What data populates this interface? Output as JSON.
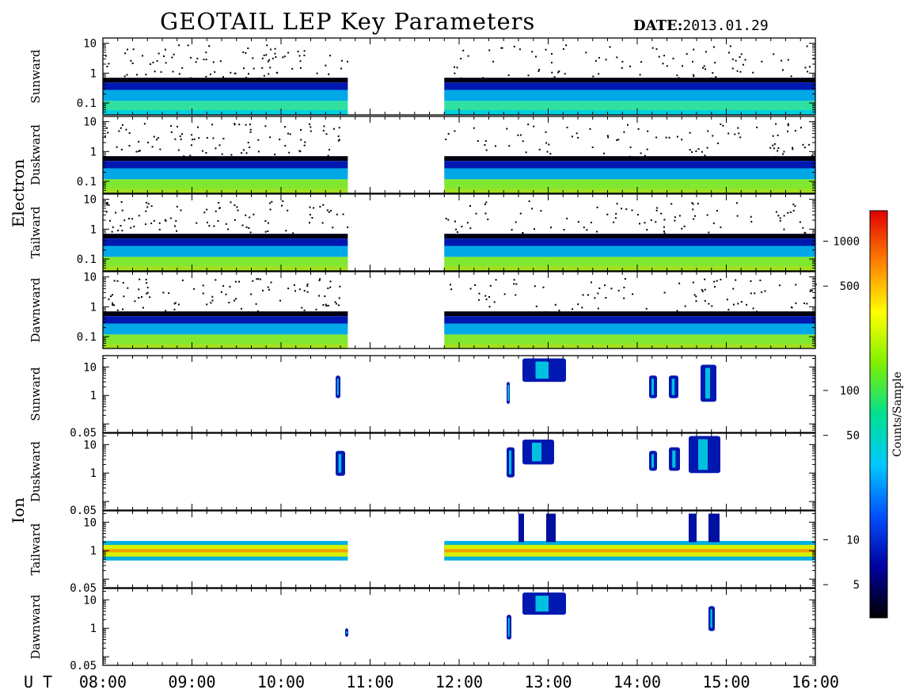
{
  "header": {
    "title": "GEOTAIL LEP Key Parameters",
    "date_label": "DATE:",
    "date_value": "2013.01.29"
  },
  "chart_data": {
    "type": "heatmap",
    "x_axis": {
      "label": "U T",
      "range": [
        "08:00",
        "16:00"
      ],
      "ticks": [
        "08:00",
        "09:00",
        "10:00",
        "11:00",
        "12:00",
        "13:00",
        "14:00",
        "15:00",
        "16:00"
      ]
    },
    "data_gap": [
      "10:45",
      "11:50"
    ],
    "groups": [
      {
        "name": "Electron",
        "y_scale": "log",
        "y_range": [
          0.04,
          15
        ],
        "y_ticks": [
          "10",
          "1",
          "0.1"
        ],
        "panels": [
          {
            "name": "Sunward"
          },
          {
            "name": "Duskward"
          },
          {
            "name": "Tailward"
          },
          {
            "name": "Dawnward"
          }
        ]
      },
      {
        "name": "Ion",
        "y_scale": "log",
        "y_range": [
          0.05,
          25
        ],
        "y_ticks": [
          "10",
          "1",
          "0.05"
        ],
        "panels": [
          {
            "name": "Sunward"
          },
          {
            "name": "Duskward"
          },
          {
            "name": "Tailward"
          },
          {
            "name": "Dawnward"
          }
        ]
      }
    ],
    "colorbar": {
      "label": "Counts/Sample",
      "scale": "log",
      "range": [
        3,
        1600
      ],
      "ticks": [
        "1000",
        "500",
        "100",
        "50",
        "10",
        "5"
      ],
      "colors": [
        "#000000",
        "#0000a0",
        "#0050ff",
        "#00c8ff",
        "#00e090",
        "#80f000",
        "#ffff00",
        "#ff8000",
        "#e00000"
      ]
    }
  }
}
